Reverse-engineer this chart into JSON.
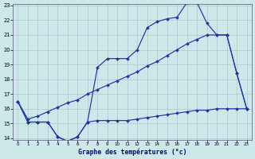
{
  "xlabel": "Graphe des températures (°c)",
  "background_color": "#cce8e8",
  "grid_color": "#aabbcc",
  "line_color": "#2233aa",
  "x": [
    0,
    1,
    2,
    3,
    4,
    5,
    6,
    7,
    8,
    9,
    10,
    11,
    12,
    13,
    14,
    15,
    16,
    17,
    18,
    19,
    20,
    21,
    22,
    23
  ],
  "y_curve": [
    16.5,
    15.1,
    15.1,
    15.1,
    14.1,
    13.8,
    14.1,
    15.1,
    18.8,
    19.4,
    19.4,
    19.4,
    20.0,
    21.5,
    21.9,
    22.1,
    22.2,
    23.2,
    23.2,
    21.8,
    21.0,
    21.0,
    18.4,
    16.0
  ],
  "y_flat": [
    16.5,
    15.1,
    15.1,
    15.1,
    14.1,
    13.8,
    14.1,
    15.1,
    15.2,
    15.2,
    15.2,
    15.2,
    15.3,
    15.4,
    15.5,
    15.6,
    15.7,
    15.8,
    15.9,
    15.9,
    16.0,
    16.0,
    16.0,
    16.0
  ],
  "y_diag": [
    16.5,
    15.3,
    15.5,
    15.8,
    16.1,
    16.4,
    16.6,
    17.0,
    17.3,
    17.6,
    17.9,
    18.2,
    18.5,
    18.9,
    19.2,
    19.6,
    20.0,
    20.4,
    20.7,
    21.0,
    21.0,
    21.0,
    18.4,
    16.0
  ],
  "ylim": [
    14,
    23
  ],
  "xlim": [
    -0.5,
    23.5
  ],
  "yticks": [
    14,
    15,
    16,
    17,
    18,
    19,
    20,
    21,
    22,
    23
  ],
  "xticks": [
    0,
    1,
    2,
    3,
    4,
    5,
    6,
    7,
    8,
    9,
    10,
    11,
    12,
    13,
    14,
    15,
    16,
    17,
    18,
    19,
    20,
    21,
    22,
    23
  ]
}
